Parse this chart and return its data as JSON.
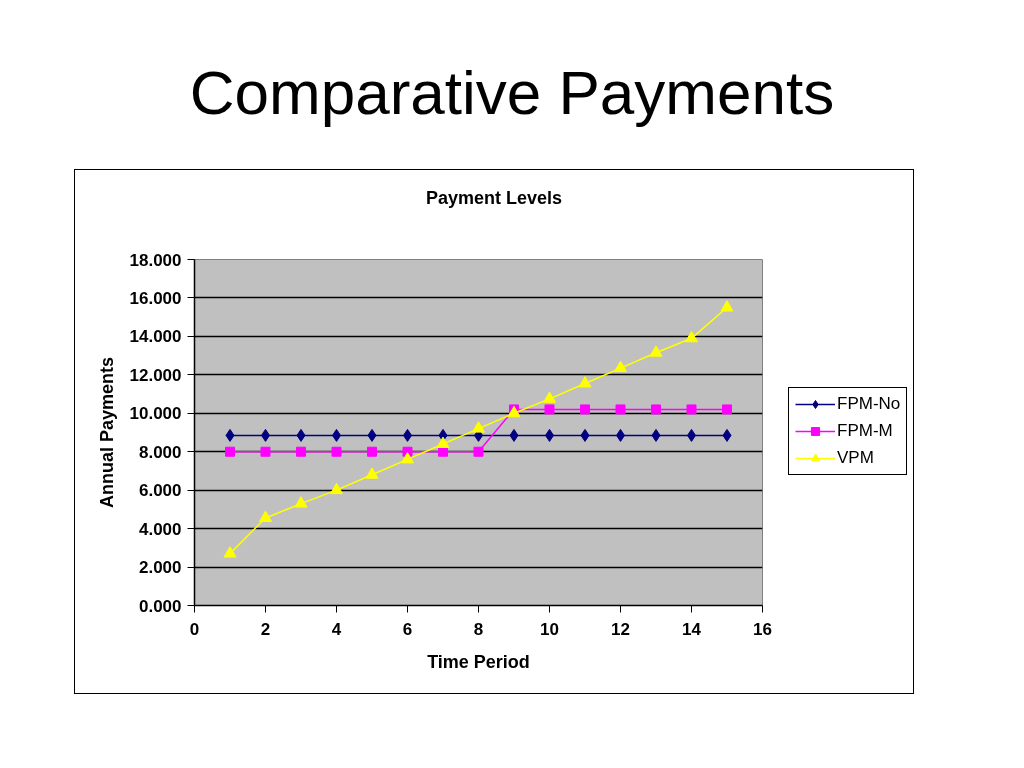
{
  "chart_data": {
    "type": "line",
    "title": "Comparative Payments",
    "subtitle": "Payment Levels",
    "xlabel": "Time Period",
    "ylabel": "Annual Payments",
    "x": [
      1,
      2,
      3,
      4,
      5,
      6,
      7,
      8,
      9,
      10,
      11,
      12,
      13,
      14,
      15
    ],
    "series": [
      {
        "name": "FPM-No",
        "color": "#000080",
        "marker": "diamond",
        "values": [
          8.85,
          8.85,
          8.85,
          8.85,
          8.85,
          8.85,
          8.85,
          8.85,
          8.85,
          8.85,
          8.85,
          8.85,
          8.85,
          8.85,
          8.85
        ]
      },
      {
        "name": "FPM-M",
        "color": "#ff00ff",
        "marker": "square",
        "values": [
          8.0,
          8.0,
          8.0,
          8.0,
          8.0,
          8.0,
          8.0,
          8.0,
          10.2,
          10.2,
          10.2,
          10.2,
          10.2,
          10.2,
          10.2
        ]
      },
      {
        "name": "VPM",
        "color": "#ffff00",
        "marker": "triangle",
        "values": [
          2.7,
          4.55,
          5.3,
          6.0,
          6.8,
          7.6,
          8.4,
          9.2,
          10.0,
          10.75,
          11.55,
          12.35,
          13.15,
          13.9,
          15.5
        ]
      }
    ],
    "xlim": [
      0,
      16
    ],
    "xticks": [
      0,
      2,
      4,
      6,
      8,
      10,
      12,
      14,
      16
    ],
    "ylim": [
      0,
      18
    ],
    "yticks": [
      {
        "value": 0,
        "label": "0.000"
      },
      {
        "value": 2,
        "label": "2.000"
      },
      {
        "value": 4,
        "label": "4.000"
      },
      {
        "value": 6,
        "label": "6.000"
      },
      {
        "value": 8,
        "label": "8.000"
      },
      {
        "value": 10,
        "label": "10.000"
      },
      {
        "value": 12,
        "label": "12.000"
      },
      {
        "value": 14,
        "label": "14.000"
      },
      {
        "value": 16,
        "label": "16.000"
      },
      {
        "value": 18,
        "label": "18.000"
      }
    ],
    "grid": "y",
    "legend": "right",
    "line_style": "solid"
  }
}
